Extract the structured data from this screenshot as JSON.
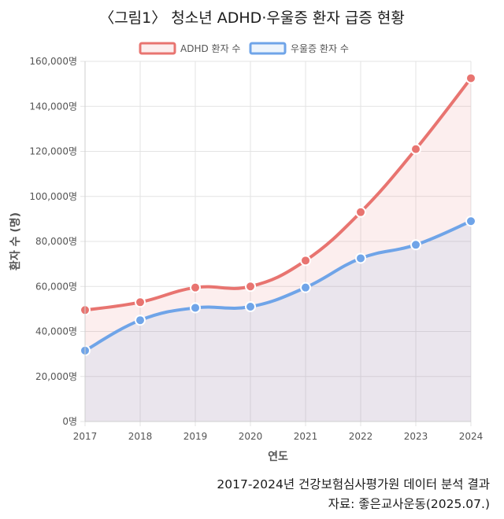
{
  "chart_data": {
    "type": "line",
    "title": "〈그림1〉 청소년 ADHD·우울증 환자 급증 현황",
    "xlabel": "연도",
    "ylabel": "환자 수 (명)",
    "x": [
      "2017",
      "2018",
      "2019",
      "2020",
      "2021",
      "2022",
      "2023",
      "2024"
    ],
    "ylim": [
      0,
      160000
    ],
    "ytick_values": [
      0,
      20000,
      40000,
      60000,
      80000,
      100000,
      120000,
      140000,
      160000
    ],
    "ytick_labels": [
      "0명",
      "20,000명",
      "40,000명",
      "60,000명",
      "80,000명",
      "100,000명",
      "120,000명",
      "140,000명",
      "160,000명"
    ],
    "grid": true,
    "legend_position": "top",
    "series": [
      {
        "name": "ADHD 환자 수",
        "color": "#e87470",
        "fill": "rgba(232,116,112,0.12)",
        "values": [
          49500,
          53000,
          59500,
          60000,
          71500,
          93000,
          121000,
          152500
        ]
      },
      {
        "name": "우울증 환자 수",
        "color": "#6fa4e8",
        "fill": "rgba(111,164,232,0.12)",
        "values": [
          31500,
          45000,
          50500,
          51000,
          59500,
          72500,
          78500,
          89000
        ]
      }
    ]
  },
  "source": {
    "line1": "2017-2024년 건강보험심사평가원 데이터 분석 결과",
    "line2": "자료: 좋은교사운동(2025.07.)"
  }
}
